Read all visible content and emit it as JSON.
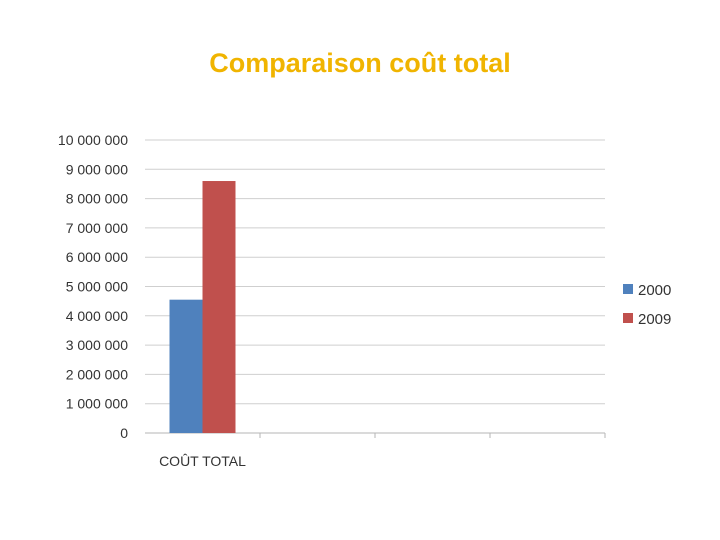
{
  "chart_data": {
    "type": "bar",
    "title": "Comparaison coût total",
    "xlabel": "",
    "ylabel": "",
    "categories": [
      "COÛT TOTAL"
    ],
    "series": [
      {
        "name": "2000",
        "values": [
          4550000
        ],
        "color": "#4f81bd"
      },
      {
        "name": "2009",
        "values": [
          8600000
        ],
        "color": "#c0504d"
      }
    ],
    "ylim": [
      0,
      10000000
    ],
    "yticks": [
      0,
      1000000,
      2000000,
      3000000,
      4000000,
      5000000,
      6000000,
      7000000,
      8000000,
      9000000,
      10000000
    ],
    "ytick_labels": [
      "0",
      "1 000 000",
      "2 000 000",
      "3 000 000",
      "4 000 000",
      "5 000 000",
      "6 000 000",
      "7 000 000",
      "8 000 000",
      "9 000 000",
      "10 000 000"
    ],
    "grid": true,
    "legend_position": "right"
  }
}
